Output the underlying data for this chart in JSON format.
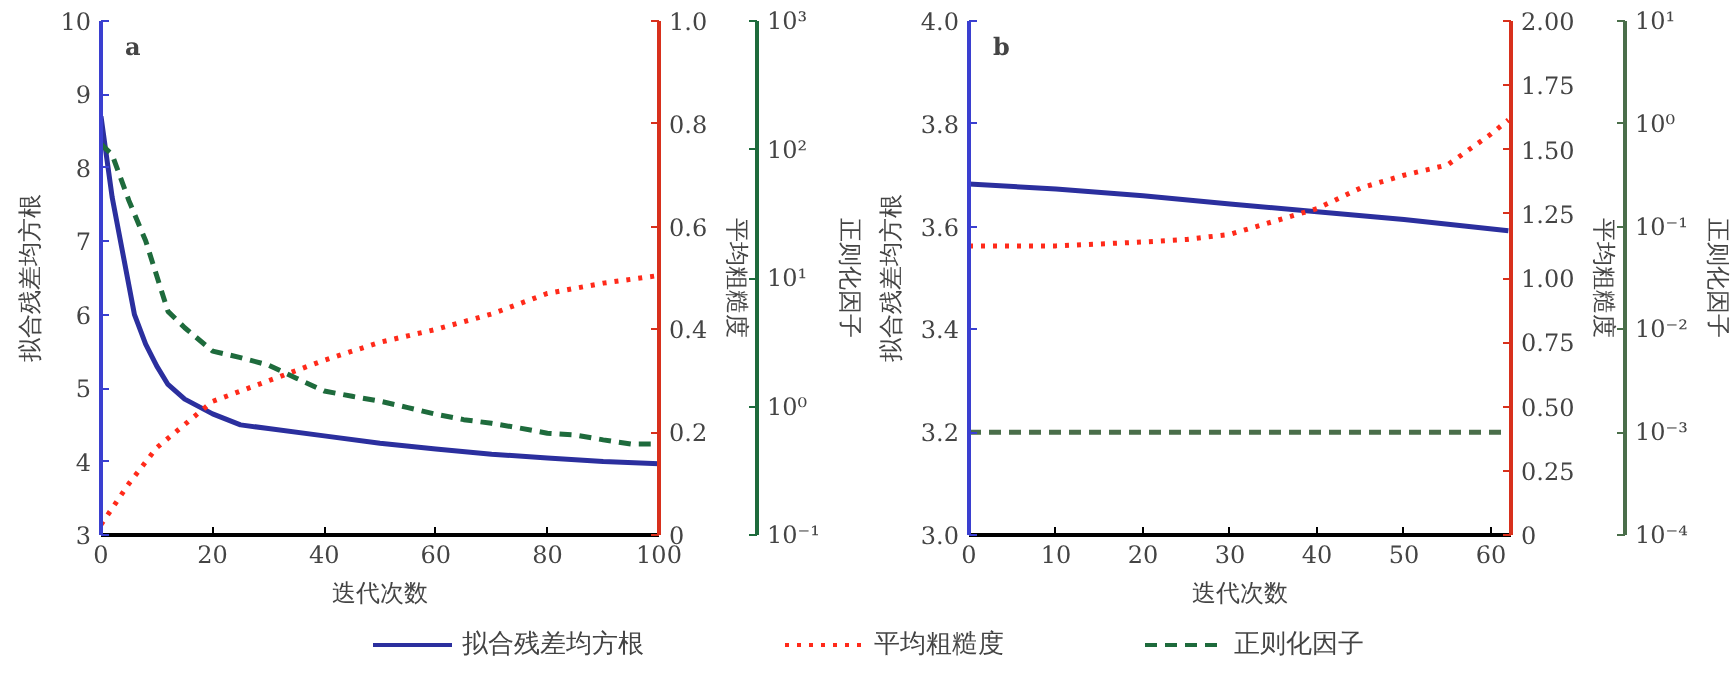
{
  "chart_data": [
    {
      "type": "line",
      "title": "a",
      "xlabel": "迭代次数",
      "ylabel": "拟合残差均方根",
      "y2label": "平均粗糙度",
      "y3label": "正则化因子",
      "log": "y3",
      "grid": false,
      "legend": "bottom",
      "marker": "none",
      "xlim": [
        0,
        100
      ],
      "xticks": [
        0,
        20,
        40,
        60,
        80,
        100
      ],
      "ylim": [
        3,
        10
      ],
      "yticks": [
        3,
        4,
        5,
        6,
        7,
        8,
        9,
        10
      ],
      "y2lim": [
        0,
        1.0
      ],
      "y2ticks": [
        {
          "value": 0,
          "label": "0"
        },
        0.2,
        0.4,
        0.6,
        0.8,
        {
          "value": 1.0,
          "label": "1.0"
        }
      ],
      "y3lim": [
        0.1,
        1000
      ],
      "y3ticks": [
        {
          "value": 0.1,
          "label": "10⁻¹"
        },
        {
          "value": 1,
          "label": "10⁰"
        },
        {
          "value": 10,
          "label": "10¹"
        },
        {
          "value": 100,
          "label": "10²"
        },
        {
          "value": 1000,
          "label": "10³"
        }
      ],
      "series": [
        {
          "name": "拟合残差均方根",
          "color": "#2b2f9e",
          "line_style": "solid",
          "x": [
            0,
            2,
            4,
            6,
            8,
            10,
            12,
            15,
            20,
            25,
            30,
            40,
            50,
            60,
            70,
            80,
            90,
            100
          ],
          "values": [
            8.7,
            7.6,
            6.8,
            6.0,
            5.6,
            5.3,
            5.05,
            4.85,
            4.65,
            4.5,
            4.45,
            4.35,
            4.25,
            4.17,
            4.1,
            4.05,
            4.0,
            3.97
          ]
        },
        {
          "name": "平均粗糙度",
          "color": "#ff2a1a",
          "line_style": "dotted",
          "axis": "y2",
          "x": [
            0,
            5,
            10,
            20,
            30,
            40,
            50,
            60,
            70,
            80,
            90,
            100
          ],
          "values": [
            0.02,
            0.1,
            0.17,
            0.26,
            0.3,
            0.34,
            0.375,
            0.4,
            0.43,
            0.47,
            0.49,
            0.505
          ]
        },
        {
          "name": "正则化因子",
          "color": "#1e6b3c",
          "line_style": "dashed",
          "axis": "y3",
          "x": [
            0,
            2,
            5,
            8,
            12,
            15,
            20,
            25,
            30,
            35,
            40,
            45,
            50,
            55,
            60,
            65,
            70,
            75,
            80,
            85,
            90,
            95,
            100
          ],
          "values": [
            110,
            91,
            40,
            19.5,
            5.5,
            4.1,
            2.7,
            2.4,
            2.1,
            1.66,
            1.32,
            1.2,
            1.1,
            0.98,
            0.87,
            0.79,
            0.74,
            0.68,
            0.62,
            0.6,
            0.55,
            0.51,
            0.51
          ]
        }
      ]
    },
    {
      "type": "line",
      "title": "b",
      "xlabel": "迭代次数",
      "ylabel": "拟合残差均方根",
      "y2label": "平均粗糙度",
      "y3label": "正则化因子",
      "log": "y3",
      "grid": false,
      "marker": "none",
      "xlim": [
        0,
        62.3
      ],
      "xticks": [
        0,
        10,
        20,
        30,
        40,
        50,
        60
      ],
      "ylim": [
        3.0,
        4.0
      ],
      "yticks": [
        {
          "value": 3.0,
          "label": "3.0"
        },
        3.2,
        3.4,
        3.6,
        3.8,
        {
          "value": 4.0,
          "label": "4.0"
        }
      ],
      "y2lim": [
        0,
        2.0
      ],
      "y2ticks": [
        {
          "value": 0,
          "label": "0"
        },
        {
          "value": 0.25,
          "label": "0.25"
        },
        {
          "value": 0.5,
          "label": "0.50"
        },
        {
          "value": 0.75,
          "label": "0.75"
        },
        {
          "value": 1.0,
          "label": "1.00"
        },
        {
          "value": 1.25,
          "label": "1.25"
        },
        {
          "value": 1.5,
          "label": "1.50"
        },
        {
          "value": 1.75,
          "label": "1.75"
        },
        {
          "value": 2.0,
          "label": "2.00"
        }
      ],
      "y3lim": [
        0.0001,
        10
      ],
      "y3ticks": [
        {
          "value": 0.0001,
          "label": "10⁻⁴"
        },
        {
          "value": 0.001,
          "label": "10⁻³"
        },
        {
          "value": 0.01,
          "label": "10⁻²"
        },
        {
          "value": 0.1,
          "label": "10⁻¹"
        },
        {
          "value": 1,
          "label": "10⁰"
        },
        {
          "value": 10,
          "label": "10¹"
        }
      ],
      "series": [
        {
          "color": "#2b2f9e",
          "line_style": "solid",
          "x": [
            0,
            10,
            20,
            30,
            40,
            50,
            62
          ],
          "values": [
            3.683,
            3.673,
            3.66,
            3.644,
            3.629,
            3.614,
            3.592
          ]
        },
        {
          "color": "#ff2a1a",
          "line_style": "dotted",
          "axis": "y2",
          "x": [
            0,
            10,
            20,
            25,
            30,
            35,
            40,
            45,
            50,
            55,
            60,
            62
          ],
          "values": [
            1.125,
            1.125,
            1.14,
            1.15,
            1.17,
            1.22,
            1.27,
            1.35,
            1.4,
            1.44,
            1.56,
            1.615
          ]
        },
        {
          "color": "#4a6e4a",
          "line_style": "dashed",
          "axis": "y3",
          "x": [
            0,
            62.3
          ],
          "values": [
            0.001,
            0.001
          ]
        }
      ]
    }
  ]
}
